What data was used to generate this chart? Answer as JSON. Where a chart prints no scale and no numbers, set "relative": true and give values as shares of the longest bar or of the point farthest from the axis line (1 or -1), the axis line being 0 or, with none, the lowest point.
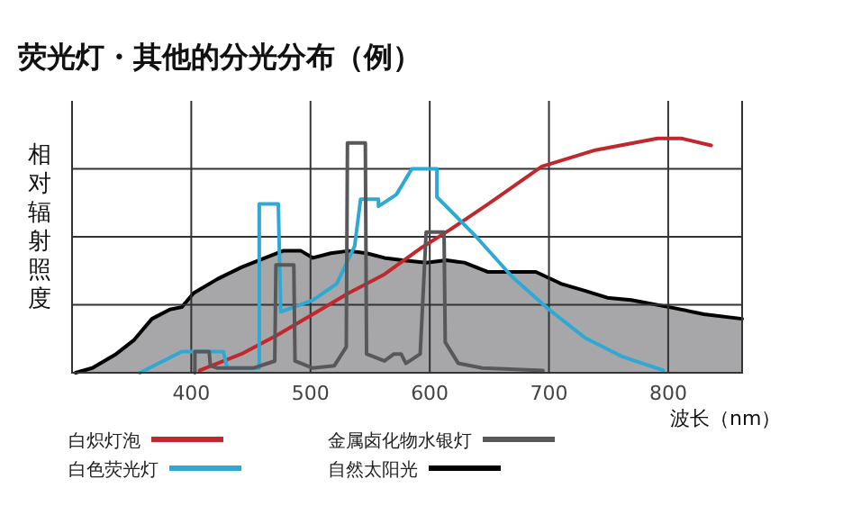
{
  "chart_data": {
    "type": "line",
    "title": "荧光灯・其他的分光分布（例）",
    "ylabel": "相对辐射照度",
    "xlabel": "波长（nm）",
    "relative": true,
    "grid": true,
    "legend": "bottom",
    "xlim": [
      300,
      862
    ],
    "xticks": [
      400,
      500,
      600,
      700,
      800
    ],
    "series": [
      {
        "name": "白炽灯泡",
        "color": "#c0282d",
        "x": [
          407,
          442,
          472,
          502,
          532,
          562,
          592,
          617,
          649,
          694,
          739,
          791,
          811,
          836
        ],
        "values": [
          0.01,
          0.08,
          0.16,
          0.25,
          0.34,
          0.42,
          0.53,
          0.61,
          0.72,
          0.88,
          0.95,
          1,
          1,
          0.97
        ]
      },
      {
        "name": "白色荧光灯",
        "color": "#2ea9d4",
        "x": [
          357,
          392,
          427,
          430,
          457,
          457,
          473,
          475,
          502,
          522,
          537,
          542,
          557,
          557,
          572,
          585,
          602,
          606,
          606,
          639,
          669,
          700,
          730,
          761,
          796
        ],
        "values": [
          0,
          0.09,
          0.09,
          0.02,
          0.02,
          0.72,
          0.72,
          0.26,
          0.31,
          0.38,
          0.54,
          0.74,
          0.74,
          0.71,
          0.76,
          0.87,
          0.87,
          0.87,
          0.75,
          0.58,
          0.41,
          0.27,
          0.15,
          0.07,
          0.01
        ]
      },
      {
        "name": "金属卤化物水银灯",
        "color": "#58585a",
        "x": [
          403,
          403,
          415,
          416,
          422,
          452,
          470,
          471,
          486,
          487,
          502,
          520,
          530,
          531,
          546,
          547,
          562,
          570,
          576,
          580,
          592,
          597,
          612,
          613,
          624,
          644,
          695
        ],
        "values": [
          0,
          0.09,
          0.09,
          0.03,
          0.02,
          0.02,
          0.05,
          0.46,
          0.46,
          0.05,
          0.02,
          0.03,
          0.11,
          0.98,
          0.98,
          0.08,
          0.05,
          0.08,
          0.08,
          0.04,
          0.08,
          0.6,
          0.6,
          0.13,
          0.04,
          0.02,
          0.01
        ]
      },
      {
        "name": "自然太阳光",
        "type": "area",
        "color": "#000000",
        "x": [
          303,
          317,
          337,
          352,
          367,
          382,
          392,
          402,
          422,
          442,
          462,
          477,
          492,
          502,
          517,
          532,
          547,
          562,
          577,
          597,
          614,
          629,
          649,
          689,
          710,
          730,
          749,
          769,
          801,
          830,
          862
        ],
        "values": [
          0,
          0.02,
          0.08,
          0.14,
          0.23,
          0.27,
          0.28,
          0.34,
          0.4,
          0.45,
          0.49,
          0.52,
          0.52,
          0.49,
          0.51,
          0.52,
          0.51,
          0.49,
          0.48,
          0.47,
          0.48,
          0.47,
          0.43,
          0.43,
          0.38,
          0.35,
          0.32,
          0.31,
          0.28,
          0.25,
          0.23
        ]
      }
    ]
  }
}
